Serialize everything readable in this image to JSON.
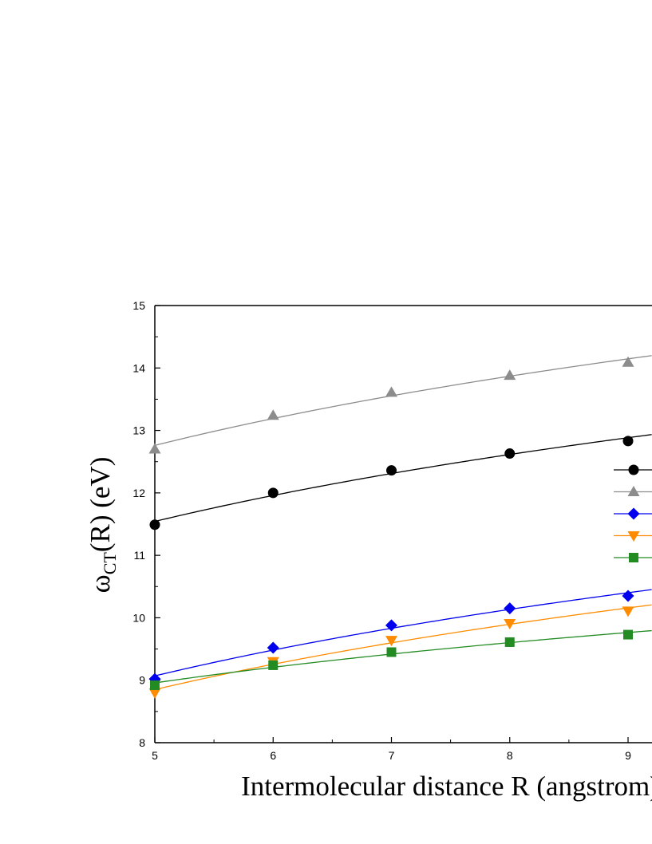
{
  "chart_data": {
    "type": "line",
    "xlabel": "Intermolecular distance R (angstrom)",
    "ylabel": {
      "base": "ω",
      "subscript": "CT",
      "rest": "(R) (eV)"
    },
    "xlim": [
      5,
      9.2
    ],
    "ylim": [
      8,
      15
    ],
    "xticks": [
      5,
      6,
      7,
      8,
      9
    ],
    "yticks": [
      8,
      9,
      10,
      11,
      12,
      13,
      14,
      15
    ],
    "grid": false,
    "legend_position": "right",
    "series": [
      {
        "marker": "circle",
        "color": "#000000",
        "x": [
          5,
          6,
          7,
          8,
          9
        ],
        "y": [
          11.49,
          12.0,
          12.36,
          12.63,
          12.83
        ]
      },
      {
        "marker": "triangle-up",
        "color": "#8c8c8c",
        "x": [
          5,
          6,
          7,
          8,
          9
        ],
        "y": [
          12.7,
          13.24,
          13.61,
          13.88,
          14.09
        ]
      },
      {
        "marker": "diamond",
        "color": "#0000ee",
        "x": [
          5,
          6,
          7,
          8,
          9
        ],
        "y": [
          9.02,
          9.52,
          9.88,
          10.15,
          10.35
        ]
      },
      {
        "marker": "triangle-down",
        "color": "#ff8c00",
        "x": [
          5,
          6,
          7,
          8,
          9
        ],
        "y": [
          8.8,
          9.3,
          9.64,
          9.91,
          10.11
        ]
      },
      {
        "marker": "square",
        "color": "#228b22",
        "x": [
          5,
          6,
          7,
          8,
          9
        ],
        "y": [
          8.92,
          9.24,
          9.45,
          9.61,
          9.73
        ]
      }
    ]
  }
}
